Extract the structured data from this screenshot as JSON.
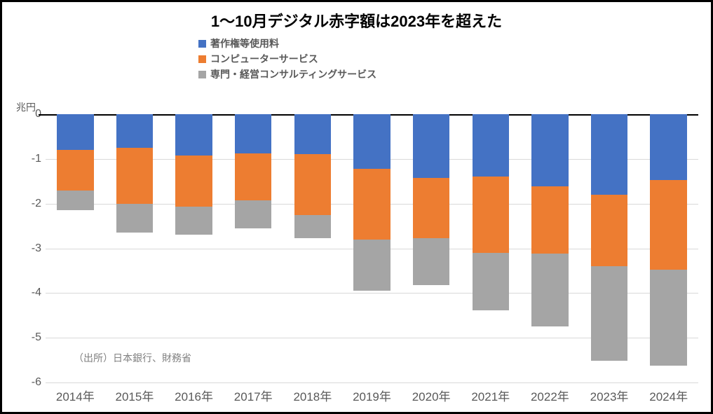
{
  "title": "1～10月デジタル赤字額は2023年を超えた",
  "y_unit": "兆円",
  "source_note": "（出所）日本銀行、財務省",
  "legend": [
    {
      "label": "著作権等使用料",
      "color": "#4472c4"
    },
    {
      "label": "コンピューターサービス",
      "color": "#ed7d31"
    },
    {
      "label": "専門・経営コンサルティングサービス",
      "color": "#a5a5a5"
    }
  ],
  "chart": {
    "type": "stacked-bar",
    "ylim": [
      -6,
      0
    ],
    "yticks": [
      0,
      -1,
      -2,
      -3,
      -4,
      -5,
      -6
    ],
    "grid_color": "#d9d9d9",
    "zeroline_color": "#000000",
    "background_color": "#ffffff",
    "bar_width": 0.62,
    "categories": [
      "2014年",
      "2015年",
      "2016年",
      "2017年",
      "2018年",
      "2019年",
      "2020年",
      "2021年",
      "2022年",
      "2023年",
      "2024年"
    ],
    "series": [
      {
        "key": "copyright",
        "color": "#4472c4",
        "values": [
          -0.8,
          -0.75,
          -0.92,
          -0.88,
          -0.9,
          -1.22,
          -1.42,
          -1.4,
          -1.62,
          -1.8,
          -1.48
        ]
      },
      {
        "key": "computer",
        "color": "#ed7d31",
        "values": [
          -0.9,
          -1.25,
          -1.15,
          -1.05,
          -1.35,
          -1.58,
          -1.35,
          -1.7,
          -1.5,
          -1.6,
          -2.0
        ]
      },
      {
        "key": "consulting",
        "color": "#a5a5a5",
        "values": [
          -0.45,
          -0.65,
          -0.63,
          -0.63,
          -0.53,
          -1.15,
          -1.05,
          -1.28,
          -1.62,
          -2.12,
          -2.14
        ]
      }
    ],
    "title_fontsize": 22,
    "label_fontsize": 17,
    "tick_fontsize": 16
  }
}
